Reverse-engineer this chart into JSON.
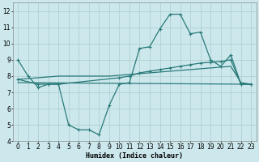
{
  "xlabel": "Humidex (Indice chaleur)",
  "bg_color": "#cce8ec",
  "grid_color": "#aacccc",
  "line_color": "#2a7a7a",
  "xlim": [
    -0.5,
    23.5
  ],
  "ylim": [
    4,
    12.5
  ],
  "yticks": [
    4,
    5,
    6,
    7,
    8,
    9,
    10,
    11,
    12
  ],
  "xticks": [
    0,
    1,
    2,
    3,
    4,
    5,
    6,
    7,
    8,
    9,
    10,
    11,
    12,
    13,
    14,
    15,
    16,
    17,
    18,
    19,
    20,
    21,
    22,
    23
  ],
  "series1_x": [
    0,
    1,
    2,
    3,
    4,
    5,
    6,
    7,
    8,
    9,
    10,
    11,
    12,
    13,
    14,
    15,
    16,
    17,
    18,
    19,
    20,
    21,
    22,
    23
  ],
  "series1_y": [
    9.0,
    8.0,
    7.3,
    7.5,
    7.5,
    5.0,
    4.7,
    4.7,
    4.4,
    6.2,
    7.5,
    7.6,
    9.7,
    9.8,
    10.9,
    11.8,
    11.8,
    10.6,
    10.7,
    9.0,
    8.6,
    9.3,
    7.5,
    7.5
  ],
  "series2_x": [
    0,
    2,
    3,
    4,
    10,
    11,
    12,
    13,
    14,
    15,
    16,
    17,
    18,
    19,
    20,
    21,
    22,
    23
  ],
  "series2_y": [
    7.8,
    7.5,
    7.5,
    7.5,
    7.9,
    8.0,
    8.2,
    8.3,
    8.4,
    8.5,
    8.6,
    8.7,
    8.8,
    8.85,
    8.9,
    9.0,
    7.5,
    7.5
  ],
  "series3_x": [
    0,
    1,
    2,
    3,
    4,
    9,
    10,
    11,
    12,
    13,
    14,
    15,
    16,
    17,
    18,
    19,
    20,
    21,
    22,
    23
  ],
  "series3_y": [
    7.8,
    7.85,
    7.9,
    7.95,
    8.0,
    8.0,
    8.05,
    8.1,
    8.15,
    8.2,
    8.25,
    8.3,
    8.35,
    8.4,
    8.45,
    8.5,
    8.55,
    8.6,
    7.6,
    7.5
  ],
  "series4_x": [
    0,
    23
  ],
  "series4_y": [
    7.6,
    7.5
  ]
}
